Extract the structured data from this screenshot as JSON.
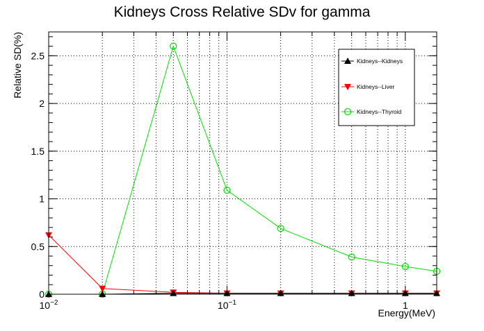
{
  "chart_data": {
    "type": "line",
    "title": "Kidneys Cross Relative SDv for gamma",
    "xlabel": "Energy(MeV)",
    "ylabel": "Relative SD(%)",
    "x_scale": "log",
    "xlim": [
      0.01,
      1.5
    ],
    "ylim": [
      0,
      2.75
    ],
    "grid": true,
    "legend_position": "top-right",
    "x_ticks": [
      {
        "value": 0.01,
        "base": "10",
        "exp": "−2"
      },
      {
        "value": 0.1,
        "base": "10",
        "exp": "−1"
      },
      {
        "value": 1,
        "base": "1",
        "exp": ""
      }
    ],
    "y_ticks": [
      {
        "value": 0,
        "label": "0"
      },
      {
        "value": 0.5,
        "label": "0.5"
      },
      {
        "value": 1,
        "label": "1"
      },
      {
        "value": 1.5,
        "label": "1.5"
      },
      {
        "value": 2,
        "label": "2"
      },
      {
        "value": 2.5,
        "label": "2.5"
      }
    ],
    "x": [
      0.01,
      0.02,
      0.05,
      0.1,
      0.2,
      0.5,
      1,
      1.5
    ],
    "series": [
      {
        "name": "Kidneys--Kidneys",
        "color": "#000000",
        "marker": "triangle-up",
        "values": [
          0.0,
          0.0,
          0.01,
          0.01,
          0.01,
          0.01,
          0.01,
          0.01
        ]
      },
      {
        "name": "Kidneys--Liver",
        "color": "#ff0000",
        "marker": "triangle-down",
        "values": [
          0.62,
          0.06,
          0.02,
          0.01,
          0.01,
          0.01,
          0.01,
          0.01
        ]
      },
      {
        "name": "Kidneys--Thyroid",
        "color": "#00e000",
        "marker": "circle-open",
        "values": [
          0.0,
          0.0,
          2.6,
          1.09,
          0.69,
          0.39,
          0.29,
          0.24
        ]
      }
    ]
  }
}
